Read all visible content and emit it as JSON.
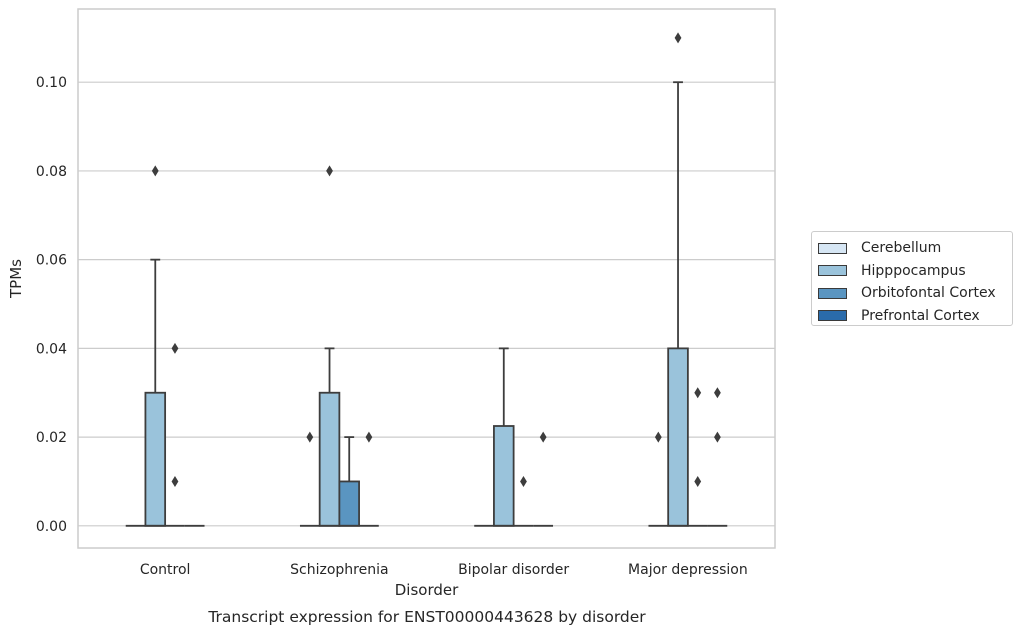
{
  "chart_data": {
    "type": "box",
    "caption": "Transcript expression for ENST00000443628 by disorder",
    "xlabel": "Disorder",
    "ylabel": "TPMs",
    "ylim": [
      -0.005,
      0.1165
    ],
    "yticks": [
      0.0,
      0.02,
      0.04,
      0.06,
      0.08,
      0.1
    ],
    "ytick_labels": [
      "0.00",
      "0.02",
      "0.04",
      "0.06",
      "0.08",
      "0.10"
    ],
    "grid": "horizontal",
    "legend_position": "right",
    "categories": [
      "Control",
      "Schizophrenia",
      "Bipolar disorder",
      "Major depression"
    ],
    "series": [
      {
        "name": "Cerebellum",
        "color": "#d6e6f4",
        "boxes": [
          {
            "q1": 0,
            "median": 0,
            "q3": 0,
            "whislo": 0,
            "whishi": 0,
            "fliers": []
          },
          {
            "q1": 0,
            "median": 0,
            "q3": 0,
            "whislo": 0,
            "whishi": 0,
            "fliers": [
              0.02
            ]
          },
          {
            "q1": 0,
            "median": 0,
            "q3": 0,
            "whislo": 0,
            "whishi": 0,
            "fliers": []
          },
          {
            "q1": 0,
            "median": 0,
            "q3": 0,
            "whislo": 0,
            "whishi": 0,
            "fliers": [
              0.02
            ]
          }
        ]
      },
      {
        "name": "Hipppocampus",
        "color": "#9ac3db",
        "boxes": [
          {
            "q1": 0,
            "median": 0,
            "q3": 0.03,
            "whislo": 0,
            "whishi": 0.06,
            "fliers": [
              0.08
            ]
          },
          {
            "q1": 0,
            "median": 0,
            "q3": 0.03,
            "whislo": 0,
            "whishi": 0.04,
            "fliers": [
              0.08
            ]
          },
          {
            "q1": 0,
            "median": 0,
            "q3": 0.0225,
            "whislo": 0,
            "whishi": 0.04,
            "fliers": []
          },
          {
            "q1": 0,
            "median": 0,
            "q3": 0.04,
            "whislo": 0,
            "whishi": 0.1,
            "fliers": [
              0.11
            ]
          }
        ]
      },
      {
        "name": "Orbitofontal Cortex",
        "color": "#5a95c1",
        "boxes": [
          {
            "q1": 0,
            "median": 0,
            "q3": 0,
            "whislo": 0,
            "whishi": 0,
            "fliers": [
              0.04,
              0.01
            ]
          },
          {
            "q1": 0,
            "median": 0,
            "q3": 0.01,
            "whislo": 0,
            "whishi": 0.02,
            "fliers": []
          },
          {
            "q1": 0,
            "median": 0,
            "q3": 0,
            "whislo": 0,
            "whishi": 0,
            "fliers": [
              0.01
            ]
          },
          {
            "q1": 0,
            "median": 0,
            "q3": 0,
            "whislo": 0,
            "whishi": 0,
            "fliers": [
              0.03,
              0.01
            ]
          }
        ]
      },
      {
        "name": "Prefrontal Cortex",
        "color": "#2a6bab",
        "boxes": [
          {
            "q1": 0,
            "median": 0,
            "q3": 0,
            "whislo": 0,
            "whishi": 0,
            "fliers": []
          },
          {
            "q1": 0,
            "median": 0,
            "q3": 0,
            "whislo": 0,
            "whishi": 0,
            "fliers": [
              0.02
            ]
          },
          {
            "q1": 0,
            "median": 0,
            "q3": 0,
            "whislo": 0,
            "whishi": 0,
            "fliers": [
              0.02
            ]
          },
          {
            "q1": 0,
            "median": 0,
            "q3": 0,
            "whislo": 0,
            "whishi": 0,
            "fliers": [
              0.03,
              0.02
            ]
          }
        ]
      }
    ]
  }
}
